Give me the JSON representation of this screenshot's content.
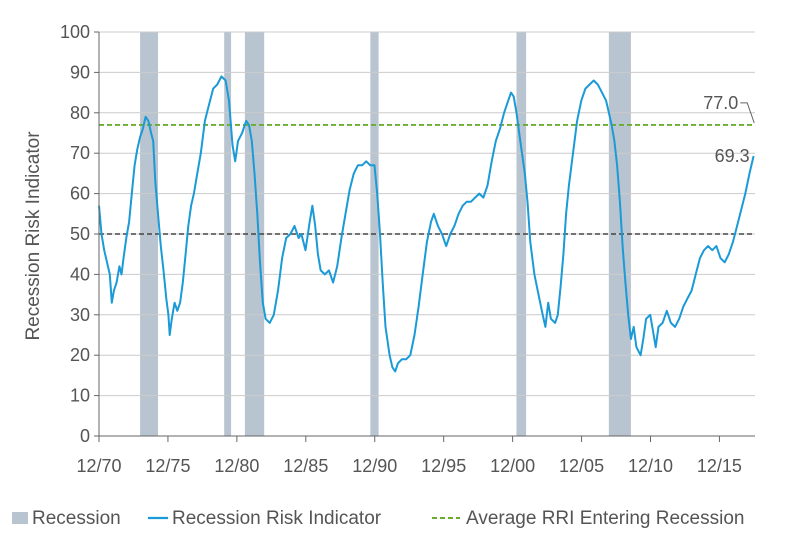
{
  "chart_data": {
    "type": "line",
    "title": "",
    "xlabel": "",
    "ylabel": "Recession Risk Indicator",
    "ylim": [
      0,
      100
    ],
    "y_ticks": [
      0,
      10,
      20,
      30,
      40,
      50,
      60,
      70,
      80,
      90,
      100
    ],
    "xlim": [
      1970.92,
      2018.5
    ],
    "x_ticks": [
      {
        "value": 1970.92,
        "label": "12/70"
      },
      {
        "value": 1975.92,
        "label": "12/75"
      },
      {
        "value": 1980.92,
        "label": "12/80"
      },
      {
        "value": 1985.92,
        "label": "12/85"
      },
      {
        "value": 1990.92,
        "label": "12/90"
      },
      {
        "value": 1995.92,
        "label": "12/95"
      },
      {
        "value": 2000.92,
        "label": "12/00"
      },
      {
        "value": 2005.92,
        "label": "12/05"
      },
      {
        "value": 2010.92,
        "label": "12/10"
      },
      {
        "value": 2015.92,
        "label": "12/15"
      }
    ],
    "grid": true,
    "legend_position": "bottom",
    "colors": {
      "recession": "#b8c4d0",
      "rri": "#1a9ad6",
      "average": "#6aac2e",
      "reference": "#444444",
      "grid": "#cccccc"
    },
    "legend": {
      "recession": "Recession",
      "rri": "Recession Risk Indicator",
      "average": "Average RRI Entering Recession"
    },
    "recessions": [
      [
        1973.9,
        1975.2
      ],
      [
        1980.0,
        1980.5
      ],
      [
        1981.5,
        1982.9
      ],
      [
        1990.6,
        1991.2
      ],
      [
        2001.2,
        2001.9
      ],
      [
        2007.9,
        2009.5
      ]
    ],
    "average_line": 77.0,
    "reference_line": 50,
    "annotations": [
      {
        "label": "77.0",
        "x": 2018.3,
        "y": 77.0
      },
      {
        "label": "69.3",
        "x": 2018.4,
        "y": 69.3
      }
    ],
    "series": [
      {
        "name": "Recession Risk Indicator",
        "points": [
          [
            1970.92,
            57
          ],
          [
            1971.1,
            50
          ],
          [
            1971.3,
            46
          ],
          [
            1971.5,
            43
          ],
          [
            1971.7,
            40
          ],
          [
            1971.85,
            33
          ],
          [
            1972.0,
            36
          ],
          [
            1972.2,
            38
          ],
          [
            1972.4,
            42
          ],
          [
            1972.55,
            40
          ],
          [
            1972.7,
            44
          ],
          [
            1972.9,
            49
          ],
          [
            1973.1,
            53
          ],
          [
            1973.3,
            60
          ],
          [
            1973.5,
            67
          ],
          [
            1973.7,
            71
          ],
          [
            1973.9,
            74
          ],
          [
            1974.1,
            76
          ],
          [
            1974.3,
            79
          ],
          [
            1974.5,
            78
          ],
          [
            1974.7,
            75
          ],
          [
            1974.85,
            73
          ],
          [
            1975.0,
            63
          ],
          [
            1975.2,
            55
          ],
          [
            1975.4,
            47
          ],
          [
            1975.6,
            41
          ],
          [
            1975.8,
            34
          ],
          [
            1975.95,
            30
          ],
          [
            1976.05,
            25
          ],
          [
            1976.2,
            29
          ],
          [
            1976.4,
            33
          ],
          [
            1976.6,
            31
          ],
          [
            1976.8,
            33
          ],
          [
            1977.0,
            38
          ],
          [
            1977.2,
            45
          ],
          [
            1977.4,
            52
          ],
          [
            1977.6,
            57
          ],
          [
            1977.8,
            60
          ],
          [
            1978.0,
            64
          ],
          [
            1978.3,
            70
          ],
          [
            1978.6,
            78
          ],
          [
            1978.9,
            82
          ],
          [
            1979.2,
            86
          ],
          [
            1979.5,
            87
          ],
          [
            1979.8,
            89
          ],
          [
            1980.1,
            88
          ],
          [
            1980.35,
            83
          ],
          [
            1980.6,
            72
          ],
          [
            1980.8,
            68
          ],
          [
            1981.0,
            73
          ],
          [
            1981.3,
            75
          ],
          [
            1981.6,
            78
          ],
          [
            1981.8,
            77
          ],
          [
            1982.0,
            73
          ],
          [
            1982.2,
            65
          ],
          [
            1982.4,
            55
          ],
          [
            1982.6,
            43
          ],
          [
            1982.8,
            33
          ],
          [
            1983.0,
            29
          ],
          [
            1983.3,
            28
          ],
          [
            1983.6,
            30
          ],
          [
            1983.9,
            36
          ],
          [
            1984.2,
            44
          ],
          [
            1984.5,
            49
          ],
          [
            1984.8,
            50
          ],
          [
            1985.1,
            52
          ],
          [
            1985.4,
            49
          ],
          [
            1985.6,
            50
          ],
          [
            1985.9,
            46
          ],
          [
            1986.2,
            53
          ],
          [
            1986.4,
            57
          ],
          [
            1986.6,
            52
          ],
          [
            1986.8,
            45
          ],
          [
            1987.0,
            41
          ],
          [
            1987.3,
            40
          ],
          [
            1987.6,
            41
          ],
          [
            1987.9,
            38
          ],
          [
            1988.2,
            42
          ],
          [
            1988.5,
            49
          ],
          [
            1988.8,
            55
          ],
          [
            1989.1,
            61
          ],
          [
            1989.4,
            65
          ],
          [
            1989.7,
            67
          ],
          [
            1990.0,
            67
          ],
          [
            1990.3,
            68
          ],
          [
            1990.6,
            67
          ],
          [
            1990.9,
            67
          ],
          [
            1991.1,
            60
          ],
          [
            1991.3,
            50
          ],
          [
            1991.5,
            38
          ],
          [
            1991.7,
            27
          ],
          [
            1992.0,
            20
          ],
          [
            1992.2,
            17
          ],
          [
            1992.4,
            16
          ],
          [
            1992.6,
            18
          ],
          [
            1992.9,
            19
          ],
          [
            1993.2,
            19
          ],
          [
            1993.5,
            20
          ],
          [
            1993.8,
            25
          ],
          [
            1994.1,
            32
          ],
          [
            1994.4,
            40
          ],
          [
            1994.7,
            48
          ],
          [
            1995.0,
            53
          ],
          [
            1995.2,
            55
          ],
          [
            1995.5,
            52
          ],
          [
            1995.8,
            50
          ],
          [
            1996.1,
            47
          ],
          [
            1996.4,
            50
          ],
          [
            1996.7,
            52
          ],
          [
            1997.0,
            55
          ],
          [
            1997.3,
            57
          ],
          [
            1997.6,
            58
          ],
          [
            1997.9,
            58
          ],
          [
            1998.2,
            59
          ],
          [
            1998.5,
            60
          ],
          [
            1998.8,
            59
          ],
          [
            1999.1,
            62
          ],
          [
            1999.4,
            68
          ],
          [
            1999.7,
            73
          ],
          [
            2000.0,
            76
          ],
          [
            2000.3,
            80
          ],
          [
            2000.6,
            83
          ],
          [
            2000.8,
            85
          ],
          [
            2001.0,
            84
          ],
          [
            2001.2,
            80
          ],
          [
            2001.4,
            75
          ],
          [
            2001.6,
            70
          ],
          [
            2001.8,
            65
          ],
          [
            2002.0,
            58
          ],
          [
            2002.2,
            48
          ],
          [
            2002.5,
            40
          ],
          [
            2002.8,
            35
          ],
          [
            2003.1,
            30
          ],
          [
            2003.3,
            27
          ],
          [
            2003.5,
            33
          ],
          [
            2003.7,
            29
          ],
          [
            2004.0,
            28
          ],
          [
            2004.2,
            30
          ],
          [
            2004.4,
            37
          ],
          [
            2004.6,
            45
          ],
          [
            2004.8,
            55
          ],
          [
            2005.0,
            62
          ],
          [
            2005.3,
            70
          ],
          [
            2005.6,
            78
          ],
          [
            2005.9,
            83
          ],
          [
            2006.2,
            86
          ],
          [
            2006.5,
            87
          ],
          [
            2006.8,
            88
          ],
          [
            2007.1,
            87
          ],
          [
            2007.4,
            85
          ],
          [
            2007.7,
            83
          ],
          [
            2007.9,
            80
          ],
          [
            2008.1,
            77
          ],
          [
            2008.3,
            73
          ],
          [
            2008.5,
            67
          ],
          [
            2008.7,
            58
          ],
          [
            2008.9,
            47
          ],
          [
            2009.1,
            38
          ],
          [
            2009.3,
            30
          ],
          [
            2009.5,
            24
          ],
          [
            2009.7,
            27
          ],
          [
            2009.9,
            22
          ],
          [
            2010.2,
            20
          ],
          [
            2010.4,
            24
          ],
          [
            2010.6,
            29
          ],
          [
            2010.9,
            30
          ],
          [
            2011.1,
            26
          ],
          [
            2011.3,
            22
          ],
          [
            2011.5,
            27
          ],
          [
            2011.8,
            28
          ],
          [
            2012.1,
            31
          ],
          [
            2012.4,
            28
          ],
          [
            2012.7,
            27
          ],
          [
            2013.0,
            29
          ],
          [
            2013.3,
            32
          ],
          [
            2013.6,
            34
          ],
          [
            2013.9,
            36
          ],
          [
            2014.2,
            40
          ],
          [
            2014.5,
            44
          ],
          [
            2014.8,
            46
          ],
          [
            2015.1,
            47
          ],
          [
            2015.4,
            46
          ],
          [
            2015.7,
            47
          ],
          [
            2016.0,
            44
          ],
          [
            2016.3,
            43
          ],
          [
            2016.6,
            45
          ],
          [
            2016.9,
            48
          ],
          [
            2017.2,
            52
          ],
          [
            2017.5,
            56
          ],
          [
            2017.8,
            60
          ],
          [
            2018.1,
            65
          ],
          [
            2018.4,
            69.3
          ]
        ]
      }
    ]
  }
}
